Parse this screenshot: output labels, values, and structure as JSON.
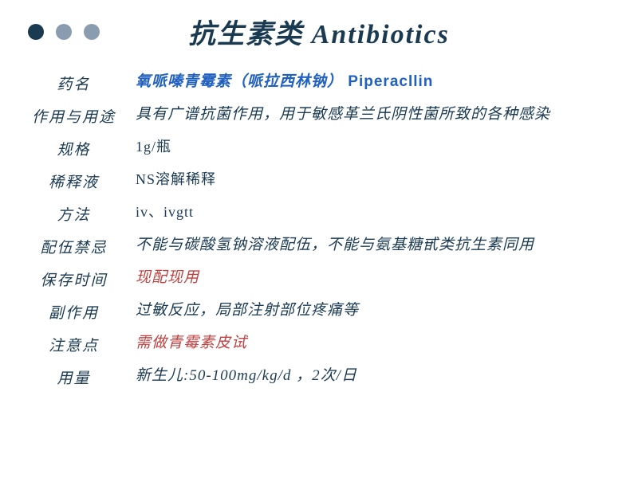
{
  "colors": {
    "title": "#1a3a52",
    "label": "#1a3a52",
    "value_default": "#1a3a52",
    "value_highlight": "#c04040",
    "drug_name": "#2060c0",
    "dot1": "#1a3a52",
    "dot2": "#8a9db0",
    "dot3": "#8a9db0"
  },
  "title": "抗生素类 Antibiotics",
  "rows": [
    {
      "label": "药名",
      "value_cn": "氧哌嗪青霉素（哌拉西林钠）",
      "value_en": " Piperacllin",
      "is_drug_name": true
    },
    {
      "label": "作用与用途",
      "value": "具有广谱抗菌作用，用于敏感革兰氏阴性菌所致的各种感染",
      "color": "default"
    },
    {
      "label": "规格",
      "value": "1g/瓶",
      "color": "default",
      "normal": true
    },
    {
      "label": "稀释液",
      "value": "NS溶解稀释",
      "color": "default",
      "normal": true
    },
    {
      "label": "方法",
      "value": "iv、ivgtt",
      "color": "default",
      "normal": true
    },
    {
      "label": "配伍禁忌",
      "value": "不能与碳酸氢钠溶液配伍，不能与氨基糖甙类抗生素同用",
      "color": "default"
    },
    {
      "label": "保存时间",
      "value": "现配现用",
      "color": "highlight"
    },
    {
      "label": "副作用",
      "value": "过敏反应，局部注射部位疼痛等",
      "color": "default"
    },
    {
      "label": "注意点",
      "value": "需做青霉素皮试",
      "color": "highlight"
    },
    {
      "label": "用量",
      "value": "新生儿:50-100mg/kg/d ，2次/日",
      "color": "default"
    }
  ]
}
